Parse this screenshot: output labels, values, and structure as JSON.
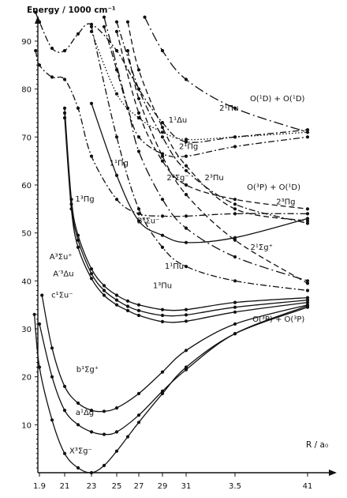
{
  "chart_data": {
    "type": "line",
    "title": "",
    "ylabel": "Energy  / 1000 cm⁻¹",
    "xlabel": "R / a₀",
    "xlim": [
      1.82,
      4.15
    ],
    "ylim": [
      0,
      97
    ],
    "x_ticks": [
      1.9,
      2.1,
      2.3,
      2.5,
      2.7,
      2.9,
      3.1,
      3.5,
      4.1
    ],
    "x_tick_labels": [
      "1.9",
      "21",
      "23",
      "25",
      "27",
      "29",
      "31",
      "3.5",
      "41"
    ],
    "y_ticks": [
      10,
      20,
      30,
      40,
      50,
      60,
      70,
      80,
      90
    ],
    "y_tick_labels": [
      "10",
      "20",
      "30",
      "40",
      "50",
      "60",
      "70",
      "80",
      "90"
    ],
    "grid": false,
    "asymptote_labels": [
      {
        "text": "O(¹D) + O(¹D)",
        "x": 3.85,
        "y": 77.5
      },
      {
        "text": "O(³P) + O(¹D)",
        "x": 3.82,
        "y": 59
      },
      {
        "text": "O(³P) + O(³P)",
        "x": 3.86,
        "y": 31.5
      }
    ],
    "series": [
      {
        "name": "X³Σg⁻",
        "label_at": [
          2.22,
          4
        ],
        "style": "solid",
        "x": [
          1.86,
          1.9,
          2.0,
          2.1,
          2.2,
          2.3,
          2.4,
          2.5,
          2.6,
          2.7,
          2.9,
          3.1,
          3.5,
          4.1
        ],
        "y": [
          33,
          22,
          11,
          4,
          1,
          0,
          1.5,
          4.5,
          7.5,
          10.5,
          16.5,
          22,
          29,
          34.5
        ]
      },
      {
        "name": "a¹Δg",
        "label_at": [
          2.25,
          12
        ],
        "style": "solid",
        "x": [
          1.9,
          2.0,
          2.1,
          2.2,
          2.3,
          2.4,
          2.5,
          2.7,
          2.9,
          3.1,
          3.5,
          4.1
        ],
        "y": [
          31,
          20,
          13,
          10,
          8.5,
          8,
          8.5,
          12,
          17,
          21.5,
          29,
          34.8
        ]
      },
      {
        "name": "b¹Σg⁺",
        "label_at": [
          2.27,
          21
        ],
        "style": "solid",
        "x": [
          1.92,
          2.0,
          2.1,
          2.2,
          2.3,
          2.4,
          2.5,
          2.7,
          2.9,
          3.1,
          3.5,
          4.1
        ],
        "y": [
          37,
          26,
          18,
          14.5,
          13,
          12.8,
          13.5,
          16.5,
          21,
          25.5,
          31,
          35
        ]
      },
      {
        "name": "c¹Σu⁻",
        "label_at": [
          2.08,
          36.5
        ],
        "style": "solid",
        "x": [
          2.1,
          2.15,
          2.2,
          2.3,
          2.4,
          2.5,
          2.6,
          2.7,
          2.9,
          3.1,
          3.5,
          4.1
        ],
        "y": [
          74,
          55,
          47,
          40.5,
          37,
          35,
          33.8,
          32.8,
          31.5,
          31.6,
          33.5,
          35.5
        ]
      },
      {
        "name": "A′³Δu",
        "label_at": [
          2.09,
          41
        ],
        "style": "solid",
        "x": [
          2.1,
          2.15,
          2.2,
          2.3,
          2.4,
          2.5,
          2.6,
          2.7,
          2.9,
          3.1,
          3.5,
          4.1
        ],
        "y": [
          75,
          56,
          48.5,
          41.5,
          38,
          36,
          34.7,
          33.8,
          32.8,
          32.9,
          34.5,
          36
        ]
      },
      {
        "name": "A³Σu⁺",
        "label_at": [
          2.07,
          44.5
        ],
        "style": "solid",
        "x": [
          2.1,
          2.15,
          2.2,
          2.3,
          2.4,
          2.5,
          2.6,
          2.7,
          2.9,
          3.1,
          3.5,
          4.1
        ],
        "y": [
          76,
          57,
          49.5,
          42.5,
          39,
          37,
          35.8,
          35,
          34,
          34,
          35.5,
          36.5
        ]
      },
      {
        "name": "B³Σu⁻",
        "label_at": [
          2.78,
          52
        ],
        "style": "solid",
        "x": [
          2.3,
          2.5,
          2.7,
          2.9,
          3.1,
          3.5,
          4.1
        ],
        "y": [
          77,
          62,
          52.5,
          49.5,
          48,
          49,
          53
        ]
      },
      {
        "name": "1¹Πu",
        "label_at": [
          3.0,
          42.5
        ],
        "style": "longdash-dot",
        "x": [
          2.4,
          2.6,
          2.7,
          2.9,
          3.1,
          3.5,
          4.1
        ],
        "y": [
          95,
          76,
          67,
          57,
          51,
          45,
          40
        ]
      },
      {
        "name": "1³Πu",
        "label_at": [
          2.9,
          38.5
        ],
        "style": "dash-dot",
        "x": [
          2.3,
          2.5,
          2.7,
          2.9,
          3.1,
          3.5,
          4.1
        ],
        "y": [
          93,
          70,
          55,
          47,
          43,
          40,
          38
        ]
      },
      {
        "name": "1³Πg",
        "label_at": [
          2.25,
          56.5
        ],
        "style": "dash-dot",
        "x": [
          1.87,
          1.9,
          2.0,
          2.1,
          2.2,
          2.3,
          2.5,
          2.7,
          2.9,
          3.1,
          3.5,
          4.1
        ],
        "y": [
          88,
          85,
          82.5,
          82,
          76,
          66,
          57,
          54,
          53.5,
          53.5,
          54,
          54
        ]
      },
      {
        "name": "1¹Πg",
        "label_at": [
          2.52,
          64
        ],
        "style": "dash-dot",
        "x": [
          2.4,
          2.5,
          2.6,
          2.7,
          2.9,
          3.1,
          3.5,
          4.1
        ],
        "y": [
          93,
          84,
          76,
          70,
          66.5,
          66,
          68,
          70
        ]
      },
      {
        "name": "1¹Δu",
        "label_at": [
          3.03,
          73
        ],
        "style": "dotted",
        "x": [
          2.3,
          2.5,
          2.7,
          2.9,
          3.1,
          3.5,
          4.1
        ],
        "y": [
          92,
          79,
          74,
          71,
          69.5,
          70,
          71
        ]
      },
      {
        "name": "2¹Πg",
        "label_at": [
          3.12,
          67.5
        ],
        "style": "dash-dot",
        "x": [
          1.87,
          1.9,
          2.0,
          2.1,
          2.2,
          2.3,
          2.5,
          2.7,
          2.9,
          3.1,
          3.5,
          4.1
        ],
        "y": [
          96,
          94,
          88.5,
          88,
          91.5,
          93.5,
          88,
          80,
          73,
          69,
          70,
          71.5
        ]
      },
      {
        "name": "2¹Πu",
        "label_at": [
          3.45,
          75.5
        ],
        "style": "longdash-dot",
        "x": [
          2.75,
          2.9,
          3.1,
          3.5,
          4.1
        ],
        "y": [
          95,
          88,
          82,
          76,
          71
        ]
      },
      {
        "name": "2³Σg⁻",
        "label_at": [
          3.03,
          61
        ],
        "style": "dashed",
        "x": [
          2.5,
          2.7,
          2.9,
          3.1,
          3.5,
          4.1
        ],
        "y": [
          92,
          75,
          65,
          60,
          57,
          55
        ]
      },
      {
        "name": "2³Πu",
        "label_at": [
          3.33,
          61
        ],
        "style": "dash-dot",
        "x": [
          2.5,
          2.7,
          2.9,
          3.1,
          3.5,
          4.1
        ],
        "y": [
          94,
          80,
          70,
          63,
          56,
          52
        ]
      },
      {
        "name": "2³Πg",
        "label_at": [
          3.92,
          56
        ],
        "style": "dashed",
        "x": [
          2.6,
          2.7,
          2.9,
          3.1,
          3.5,
          4.1
        ],
        "y": [
          94,
          84,
          72,
          64,
          55,
          52.5
        ]
      },
      {
        "name": "2¹Σg⁺",
        "label_at": [
          3.72,
          46.5
        ],
        "style": "dashed",
        "x": [
          2.6,
          2.7,
          2.9,
          3.1,
          3.5,
          4.1
        ],
        "y": [
          88,
          78,
          66,
          58,
          48.5,
          39.5
        ]
      }
    ]
  }
}
